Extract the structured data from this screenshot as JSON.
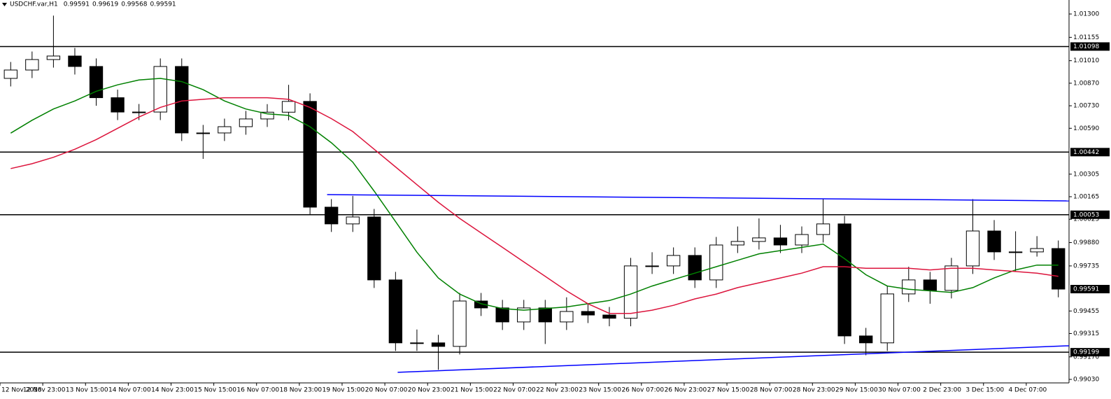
{
  "chart_data": {
    "type": "candlestick",
    "title": "USDCHF.var,H1",
    "header_values": [
      0.99591,
      0.99619,
      0.99568,
      0.99591
    ],
    "categories": [
      "12 Nov 2018",
      null,
      "12 Nov 23:00",
      null,
      "13 Nov 15:00",
      null,
      "14 Nov 07:00",
      null,
      "14 Nov 23:00",
      null,
      "15 Nov 15:00",
      null,
      "16 Nov 07:00",
      null,
      "18 Nov 23:00",
      null,
      "19 Nov 15:00",
      null,
      "20 Nov 07:00",
      null,
      "20 Nov 23:00",
      null,
      "21 Nov 15:00",
      null,
      "22 Nov 07:00",
      null,
      "22 Nov 23:00",
      null,
      "23 Nov 15:00",
      null,
      "26 Nov 07:00",
      null,
      "26 Nov 23:00",
      null,
      "27 Nov 15:00",
      null,
      "28 Nov 07:00",
      null,
      "28 Nov 23:00",
      null,
      "29 Nov 15:00",
      null,
      "30 Nov 07:00",
      null,
      "2 Dec 23:00",
      null,
      "3 Dec 15:00",
      null,
      "4 Dec 07:00",
      null
    ],
    "open": [
      1.009,
      1.00952,
      1.01017,
      1.01039,
      1.00974,
      1.0078,
      1.00691,
      1.00691,
      1.00974,
      1.00561,
      1.00561,
      1.006,
      1.00648,
      1.0069,
      1.00757,
      1.001,
      0.99996,
      1.00039,
      0.99648,
      0.99257,
      0.99257,
      0.99235,
      0.99517,
      0.99474,
      0.99387,
      0.99474,
      0.99387,
      0.99452,
      0.9943,
      0.9941,
      0.99735,
      0.99735,
      0.998,
      0.99648,
      0.99865,
      0.99887,
      0.99909,
      0.99865,
      0.9993,
      0.99996,
      0.993,
      0.99257,
      0.99561,
      0.99648,
      0.99583,
      0.99735,
      0.99952,
      0.99822,
      0.99822,
      0.99843
    ],
    "high": [
      1.01002,
      1.01067,
      1.0129,
      1.01089,
      1.01024,
      1.0083,
      1.00741,
      1.01024,
      1.01024,
      1.00611,
      1.0065,
      1.00698,
      1.0074,
      1.0086,
      1.00807,
      1.0015,
      1.0017,
      1.00089,
      0.99698,
      0.9934,
      0.99307,
      0.99567,
      0.99567,
      0.99524,
      0.99524,
      0.99524,
      0.9954,
      0.99502,
      0.9948,
      0.99785,
      0.9982,
      0.9985,
      0.9985,
      0.99915,
      0.9998,
      1.0003,
      0.9999,
      0.9998,
      1.0015,
      1.00046,
      0.9935,
      0.99611,
      0.9973,
      0.99698,
      0.99785,
      1.0015,
      1.0002,
      0.9995,
      0.9992,
      0.99893
    ],
    "low": [
      1.0085,
      1.00902,
      1.00967,
      1.00924,
      1.0073,
      1.00641,
      1.00641,
      1.00641,
      1.00511,
      1.004,
      1.00511,
      1.0055,
      1.00598,
      1.0064,
      1.0005,
      0.99946,
      0.99946,
      0.99598,
      0.99207,
      0.99207,
      0.9909,
      0.99185,
      0.99424,
      0.99337,
      0.99337,
      0.9925,
      0.99337,
      0.9938,
      0.9936,
      0.9936,
      0.99685,
      0.99685,
      0.99598,
      0.99598,
      0.99815,
      0.99837,
      0.99815,
      0.99815,
      0.9988,
      0.9925,
      0.9918,
      0.99207,
      0.99511,
      0.995,
      0.99533,
      0.99685,
      0.99772,
      0.997,
      0.99793,
      0.9954
    ],
    "close": [
      1.00952,
      1.01017,
      1.01039,
      1.00974,
      1.0078,
      1.00691,
      1.00691,
      1.00974,
      1.00561,
      1.00561,
      1.006,
      1.00648,
      1.0069,
      1.00757,
      1.001,
      0.99996,
      1.00039,
      0.99648,
      0.99257,
      0.99257,
      0.99235,
      0.99517,
      0.99474,
      0.99387,
      0.99474,
      0.99387,
      0.99452,
      0.9943,
      0.9941,
      0.99735,
      0.99735,
      0.998,
      0.99648,
      0.99865,
      0.99887,
      0.99909,
      0.99865,
      0.9993,
      0.99996,
      0.993,
      0.99257,
      0.99561,
      0.99648,
      0.99583,
      0.99735,
      0.99952,
      0.99822,
      0.99822,
      0.99843,
      0.99591
    ],
    "color_up": "#ffffff",
    "color_down": "#000000",
    "lines": [
      {
        "color": "#008000",
        "values": [
          1.0056,
          1.0064,
          1.0071,
          1.0076,
          1.0082,
          1.0086,
          1.0089,
          1.009,
          1.0088,
          1.0083,
          1.0076,
          1.0071,
          1.0068,
          1.0067,
          1.006,
          1.005,
          1.0038,
          1.002,
          1.0001,
          0.9982,
          0.9966,
          0.9956,
          0.995,
          0.9947,
          0.9946,
          0.9947,
          0.9948,
          0.995,
          0.9952,
          0.9956,
          0.9961,
          0.9965,
          0.9969,
          0.9973,
          0.9977,
          0.9981,
          0.9983,
          0.9985,
          0.9987,
          0.9978,
          0.9968,
          0.9961,
          0.9959,
          0.9958,
          0.9957,
          0.996,
          0.9966,
          0.9971,
          0.9974,
          0.9974
        ]
      },
      {
        "color": "#dc143c",
        "values": [
          1.0034,
          1.0037,
          1.0041,
          1.0046,
          1.0052,
          1.0059,
          1.0066,
          1.0072,
          1.0076,
          1.0077,
          1.0078,
          1.0078,
          1.0078,
          1.0077,
          1.0072,
          1.0065,
          1.0057,
          1.0046,
          1.0035,
          1.0024,
          1.0013,
          1.0003,
          0.9994,
          0.9985,
          0.9976,
          0.9967,
          0.9958,
          0.995,
          0.9944,
          0.9944,
          0.9946,
          0.9949,
          0.9953,
          0.9956,
          0.996,
          0.9963,
          0.9966,
          0.9969,
          0.9973,
          0.9973,
          0.9972,
          0.9972,
          0.9972,
          0.9971,
          0.9972,
          0.9972,
          0.9971,
          0.997,
          0.9969,
          0.9967
        ]
      }
    ],
    "trendlines": [
      {
        "color": "#0000ff",
        "x": [
          14.8,
          49.5
        ],
        "y": [
          1.00178,
          1.00139
        ]
      },
      {
        "color": "#0000ff",
        "x": [
          18.1,
          49.5
        ],
        "y": [
          0.99074,
          0.99239
        ]
      }
    ],
    "levels": [
      1.01098,
      1.00442,
      1.00053,
      0.99199
    ],
    "current_price": 0.99591,
    "ylim": [
      0.9903,
      1.013
    ],
    "yticks": [
      {
        "value": 1.013,
        "label": "1.01300"
      },
      1.01155,
      {
        "value": 1.0101,
        "label": "1.01010"
      },
      {
        "value": 1.0087,
        "label": "1.00870"
      },
      {
        "value": 1.0073,
        "label": "1.00730"
      },
      {
        "value": 1.0059,
        "label": "1.00590"
      },
      1.00305,
      1.00165,
      1.00025,
      {
        "value": 0.9988,
        "label": "0.99880"
      },
      0.99735,
      0.99455,
      0.99315,
      {
        "value": 0.9917,
        "label": "0.99170"
      },
      {
        "value": 0.9903,
        "label": "0.99030"
      }
    ]
  }
}
